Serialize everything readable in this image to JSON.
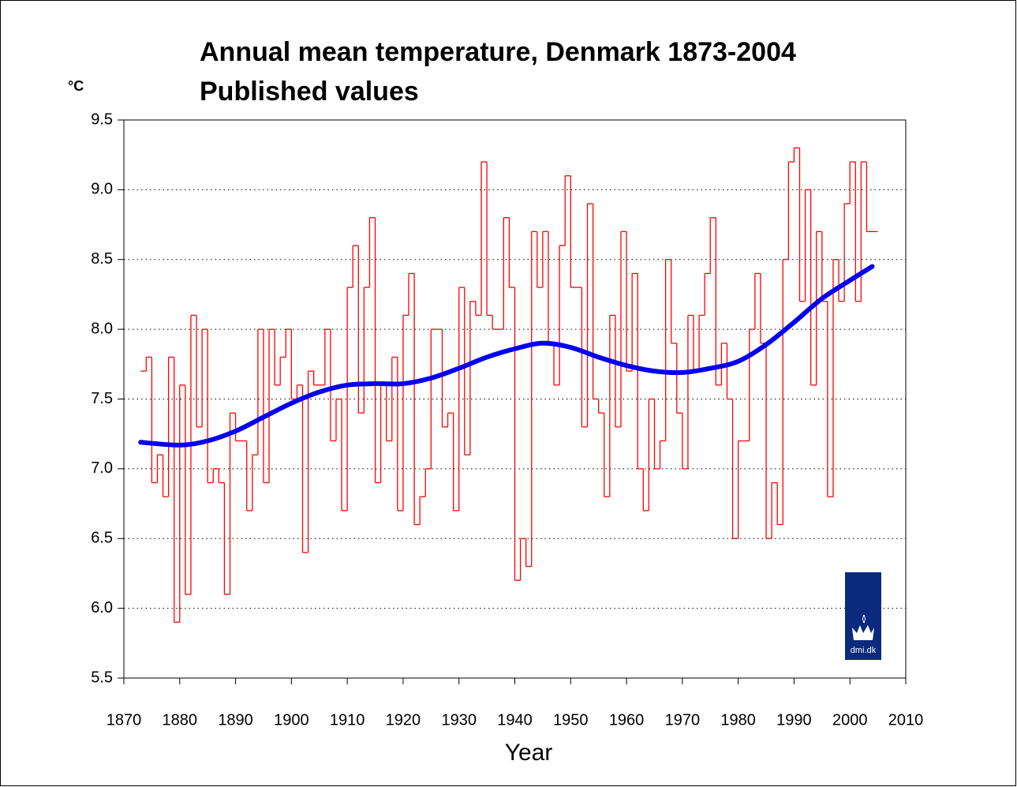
{
  "chart_data": {
    "type": "step",
    "title": "Annual mean temperature, Denmark 1873-2004",
    "subtitle": "Published values",
    "y_label": "°C",
    "x_label": "Year",
    "logo_text": "dmi.dk",
    "x": [
      1873,
      1874,
      1875,
      1876,
      1877,
      1878,
      1879,
      1880,
      1881,
      1882,
      1883,
      1884,
      1885,
      1886,
      1887,
      1888,
      1889,
      1890,
      1891,
      1892,
      1893,
      1894,
      1895,
      1896,
      1897,
      1898,
      1899,
      1900,
      1901,
      1902,
      1903,
      1904,
      1905,
      1906,
      1907,
      1908,
      1909,
      1910,
      1911,
      1912,
      1913,
      1914,
      1915,
      1916,
      1917,
      1918,
      1919,
      1920,
      1921,
      1922,
      1923,
      1924,
      1925,
      1926,
      1927,
      1928,
      1929,
      1930,
      1931,
      1932,
      1933,
      1934,
      1935,
      1936,
      1937,
      1938,
      1939,
      1940,
      1941,
      1942,
      1943,
      1944,
      1945,
      1946,
      1947,
      1948,
      1949,
      1950,
      1951,
      1952,
      1953,
      1954,
      1955,
      1956,
      1957,
      1958,
      1959,
      1960,
      1961,
      1962,
      1963,
      1964,
      1965,
      1966,
      1967,
      1968,
      1969,
      1970,
      1971,
      1972,
      1973,
      1974,
      1975,
      1976,
      1977,
      1978,
      1979,
      1980,
      1981,
      1982,
      1983,
      1984,
      1985,
      1986,
      1987,
      1988,
      1989,
      1990,
      1991,
      1992,
      1993,
      1994,
      1995,
      1996,
      1997,
      1998,
      1999,
      2000,
      2001,
      2002,
      2003,
      2004
    ],
    "series": [
      {
        "color": "#ff0000",
        "values": [
          7.7,
          7.8,
          6.9,
          7.1,
          6.8,
          7.8,
          5.9,
          7.6,
          6.1,
          8.1,
          7.3,
          8.0,
          6.9,
          7.0,
          6.9,
          6.1,
          7.4,
          7.2,
          7.2,
          6.7,
          7.1,
          8.0,
          6.9,
          8.0,
          7.6,
          7.8,
          8.0,
          7.5,
          7.6,
          6.4,
          7.7,
          7.6,
          7.6,
          8.0,
          7.2,
          7.5,
          6.7,
          8.3,
          8.6,
          7.4,
          8.3,
          8.8,
          6.9,
          7.6,
          7.2,
          7.8,
          6.7,
          8.1,
          8.4,
          6.6,
          6.8,
          7.0,
          8.0,
          8.0,
          7.3,
          7.4,
          6.7,
          8.3,
          7.1,
          8.2,
          8.1,
          9.2,
          8.1,
          8.0,
          8.0,
          8.8,
          8.3,
          6.2,
          6.5,
          6.3,
          8.7,
          8.3,
          8.7,
          7.9,
          7.6,
          8.6,
          9.1,
          8.3,
          8.3,
          7.3,
          8.9,
          7.5,
          7.4,
          6.8,
          8.1,
          7.3,
          8.7,
          7.7,
          8.4,
          7.0,
          6.7,
          7.5,
          7.0,
          7.2,
          8.5,
          7.9,
          7.4,
          7.0,
          8.1,
          7.7,
          8.1,
          8.4,
          8.8,
          7.6,
          7.9,
          7.5,
          6.5,
          7.2,
          7.2,
          8.0,
          8.4,
          7.9,
          6.5,
          6.9,
          6.6,
          8.5,
          9.2,
          9.3,
          8.2,
          9.0,
          7.6,
          8.7,
          8.2,
          6.8,
          8.5,
          8.2,
          8.9,
          9.2,
          8.2,
          9.2,
          8.7,
          8.7
        ]
      },
      {
        "color": "#0000ee",
        "type": "line",
        "x": [
          1873,
          1880,
          1885,
          1890,
          1895,
          1900,
          1905,
          1910,
          1915,
          1920,
          1925,
          1930,
          1935,
          1940,
          1945,
          1950,
          1955,
          1960,
          1965,
          1970,
          1975,
          1980,
          1985,
          1990,
          1995,
          2000,
          2004
        ],
        "values": [
          7.19,
          7.17,
          7.2,
          7.27,
          7.37,
          7.47,
          7.55,
          7.6,
          7.61,
          7.61,
          7.65,
          7.72,
          7.8,
          7.86,
          7.9,
          7.87,
          7.8,
          7.74,
          7.7,
          7.69,
          7.72,
          7.77,
          7.89,
          8.05,
          8.22,
          8.35,
          8.45
        ]
      }
    ],
    "xlim": [
      1870,
      2010
    ],
    "xticks": [
      1870,
      1880,
      1890,
      1900,
      1910,
      1920,
      1930,
      1940,
      1950,
      1960,
      1970,
      1980,
      1990,
      2000,
      2010
    ],
    "ylim": [
      5.5,
      9.5
    ],
    "yticks": [
      5.5,
      {
        "value": 6.0,
        "label": "6.0"
      },
      6.5,
      {
        "value": 7.0,
        "label": "7.0"
      },
      7.5,
      {
        "value": 8.0,
        "label": "8.0"
      },
      8.5,
      {
        "value": 9.0,
        "label": "9.0"
      },
      9.5
    ],
    "grid": true
  }
}
